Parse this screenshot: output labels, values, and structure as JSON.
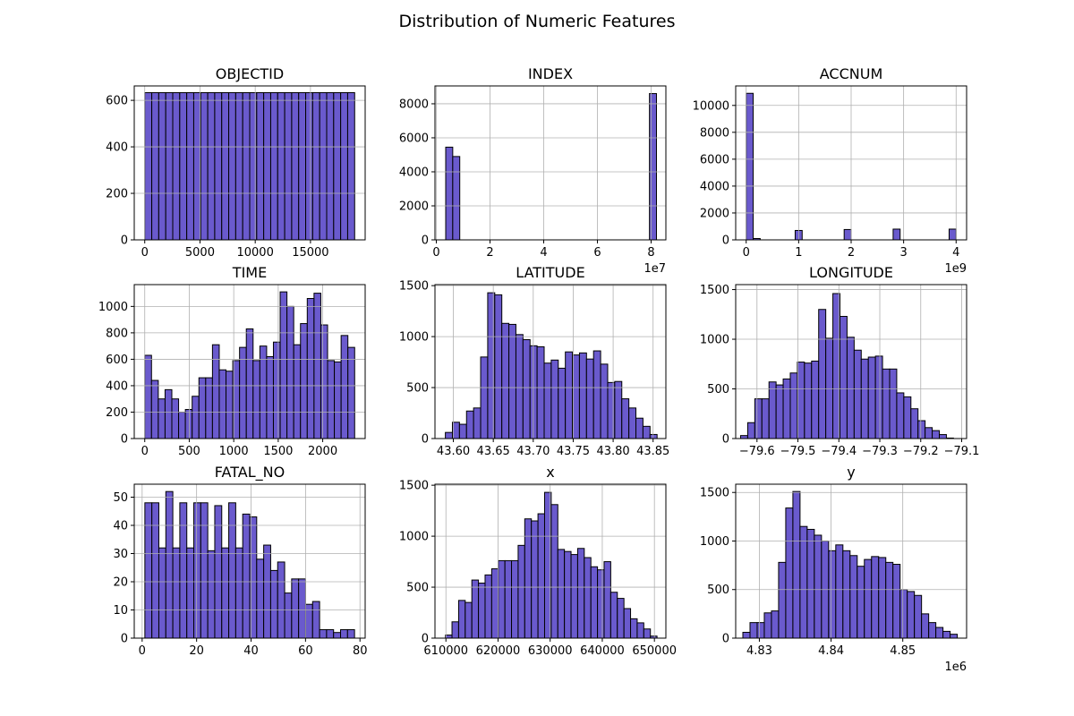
{
  "figure": {
    "suptitle": "Distribution of Numeric Features",
    "bar_color": "#6A5ACD",
    "edge_color": "#000000",
    "grid": true
  },
  "chart_data": [
    {
      "type": "bar",
      "title": "OBJECTID",
      "xlim": [
        -950,
        19950
      ],
      "ylim": [
        0,
        662
      ],
      "x_ticks": [
        {
          "v": 0,
          "label": "0"
        },
        {
          "v": 5000,
          "label": "5000"
        },
        {
          "v": 10000,
          "label": "10000"
        },
        {
          "v": 15000,
          "label": "15000"
        }
      ],
      "y_ticks": [
        {
          "v": 0,
          "label": "0"
        },
        {
          "v": 200,
          "label": "200"
        },
        {
          "v": 400,
          "label": "400"
        },
        {
          "v": 600,
          "label": "600"
        }
      ],
      "x_offset_label": "",
      "bin_start": 1,
      "bin_end": 19000,
      "values": [
        633,
        633,
        633,
        633,
        633,
        633,
        633,
        633,
        633,
        633,
        633,
        633,
        633,
        633,
        633,
        633,
        633,
        633,
        633,
        633,
        633,
        633,
        633,
        633,
        633,
        633,
        633,
        633,
        633,
        633
      ]
    },
    {
      "type": "bar",
      "title": "INDEX",
      "xlim": [
        -0.05,
        8.55
      ],
      "ylim": [
        0,
        9050
      ],
      "x_ticks": [
        {
          "v": 0,
          "label": "0"
        },
        {
          "v": 2,
          "label": "2"
        },
        {
          "v": 4,
          "label": "4"
        },
        {
          "v": 6,
          "label": "6"
        },
        {
          "v": 8,
          "label": "8"
        }
      ],
      "y_ticks": [
        {
          "v": 0,
          "label": "0"
        },
        {
          "v": 2000,
          "label": "2000"
        },
        {
          "v": 4000,
          "label": "4000"
        },
        {
          "v": 6000,
          "label": "6000"
        },
        {
          "v": 8000,
          "label": "8000"
        }
      ],
      "x_offset_label": "1e7",
      "bin_start": 0.35,
      "bin_end": 8.2,
      "values": [
        5450,
        4900,
        0,
        0,
        0,
        0,
        0,
        0,
        0,
        0,
        0,
        0,
        0,
        0,
        0,
        0,
        0,
        0,
        0,
        0,
        0,
        0,
        0,
        0,
        0,
        0,
        0,
        0,
        0,
        8600
      ]
    },
    {
      "type": "bar",
      "title": "ACCNUM",
      "xlim": [
        -0.2,
        4.2
      ],
      "ylim": [
        0,
        11450
      ],
      "x_ticks": [
        {
          "v": 0,
          "label": "0"
        },
        {
          "v": 1,
          "label": "1"
        },
        {
          "v": 2,
          "label": "2"
        },
        {
          "v": 3,
          "label": "3"
        },
        {
          "v": 4,
          "label": "4"
        }
      ],
      "y_ticks": [
        {
          "v": 0,
          "label": "0"
        },
        {
          "v": 2000,
          "label": "2000"
        },
        {
          "v": 4000,
          "label": "4000"
        },
        {
          "v": 6000,
          "label": "6000"
        },
        {
          "v": 8000,
          "label": "8000"
        },
        {
          "v": 10000,
          "label": "10000"
        }
      ],
      "x_offset_label": "1e9",
      "bin_start": 0,
      "bin_end": 4.0,
      "values": [
        10900,
        100,
        0,
        0,
        0,
        0,
        0,
        700,
        0,
        0,
        0,
        0,
        0,
        0,
        770,
        0,
        0,
        0,
        0,
        0,
        0,
        800,
        0,
        0,
        0,
        0,
        0,
        0,
        0,
        800
      ]
    },
    {
      "type": "bar",
      "title": "TIME",
      "xlim": [
        -118,
        2477
      ],
      "ylim": [
        0,
        1165
      ],
      "x_ticks": [
        {
          "v": 0,
          "label": "0"
        },
        {
          "v": 500,
          "label": "500"
        },
        {
          "v": 1000,
          "label": "1000"
        },
        {
          "v": 1500,
          "label": "1500"
        },
        {
          "v": 2000,
          "label": "2000"
        }
      ],
      "y_ticks": [
        {
          "v": 0,
          "label": "0"
        },
        {
          "v": 200,
          "label": "200"
        },
        {
          "v": 400,
          "label": "400"
        },
        {
          "v": 600,
          "label": "600"
        },
        {
          "v": 800,
          "label": "800"
        },
        {
          "v": 1000,
          "label": "1000"
        }
      ],
      "x_offset_label": "",
      "bin_start": 0,
      "bin_end": 2359,
      "values": [
        630,
        440,
        300,
        370,
        300,
        200,
        220,
        320,
        460,
        460,
        710,
        520,
        510,
        590,
        690,
        830,
        590,
        700,
        620,
        730,
        1110,
        1000,
        710,
        870,
        1060,
        1100,
        860,
        590,
        580,
        780,
        690
      ]
    },
    {
      "type": "bar",
      "title": "LATITUDE",
      "xlim": [
        43.577,
        43.866
      ],
      "ylim": [
        0,
        1510
      ],
      "x_ticks": [
        {
          "v": 43.6,
          "label": "43.60"
        },
        {
          "v": 43.65,
          "label": "43.65"
        },
        {
          "v": 43.7,
          "label": "43.70"
        },
        {
          "v": 43.75,
          "label": "43.75"
        },
        {
          "v": 43.8,
          "label": "43.80"
        },
        {
          "v": 43.85,
          "label": "43.85"
        }
      ],
      "y_ticks": [
        {
          "v": 0,
          "label": "0"
        },
        {
          "v": 500,
          "label": "500"
        },
        {
          "v": 1000,
          "label": "1000"
        },
        {
          "v": 1500,
          "label": "1500"
        }
      ],
      "x_offset_label": "",
      "bin_start": 43.59,
      "bin_end": 43.855,
      "values": [
        60,
        160,
        140,
        270,
        300,
        800,
        1430,
        1410,
        1130,
        1120,
        1020,
        970,
        910,
        900,
        740,
        770,
        690,
        850,
        820,
        840,
        780,
        860,
        730,
        550,
        560,
        390,
        300,
        200,
        120,
        40
      ]
    },
    {
      "type": "bar",
      "title": "LONGITUDE",
      "xlim": [
        -79.652,
        -79.088
      ],
      "ylim": [
        0,
        1550
      ],
      "x_ticks": [
        {
          "v": -79.6,
          "label": "−79.6"
        },
        {
          "v": -79.5,
          "label": "−79.5"
        },
        {
          "v": -79.4,
          "label": "−79.4"
        },
        {
          "v": -79.3,
          "label": "−79.3"
        },
        {
          "v": -79.2,
          "label": "−79.2"
        },
        {
          "v": -79.1,
          "label": "−79.1"
        }
      ],
      "y_ticks": [
        {
          "v": 0,
          "label": "0"
        },
        {
          "v": 500,
          "label": "500"
        },
        {
          "v": 1000,
          "label": "1000"
        },
        {
          "v": 1500,
          "label": "1500"
        }
      ],
      "x_offset_label": "",
      "bin_start": -79.64,
      "bin_end": -79.12,
      "values": [
        30,
        160,
        400,
        400,
        570,
        540,
        600,
        660,
        770,
        760,
        780,
        1300,
        1010,
        1460,
        1230,
        1020,
        890,
        800,
        820,
        830,
        700,
        700,
        460,
        420,
        300,
        180,
        110,
        80,
        40,
        5
      ]
    },
    {
      "type": "bar",
      "title": "FATAL_NO",
      "xlim": [
        -2.9,
        81.9
      ],
      "ylim": [
        0,
        54.6
      ],
      "x_ticks": [
        {
          "v": 0,
          "label": "0"
        },
        {
          "v": 20,
          "label": "20"
        },
        {
          "v": 40,
          "label": "40"
        },
        {
          "v": 60,
          "label": "60"
        },
        {
          "v": 80,
          "label": "80"
        }
      ],
      "y_ticks": [
        {
          "v": 0,
          "label": "0"
        },
        {
          "v": 10,
          "label": "10"
        },
        {
          "v": 20,
          "label": "20"
        },
        {
          "v": 30,
          "label": "30"
        },
        {
          "v": 40,
          "label": "40"
        },
        {
          "v": 50,
          "label": "50"
        }
      ],
      "x_offset_label": "",
      "bin_start": 1,
      "bin_end": 78,
      "values": [
        48,
        48,
        32,
        52,
        32,
        48,
        32,
        48,
        48,
        31,
        47,
        32,
        48,
        32,
        44,
        43,
        28,
        33,
        24,
        27,
        16,
        21,
        21,
        12,
        13,
        3,
        3,
        2,
        3,
        3
      ]
    },
    {
      "type": "bar",
      "title": "x",
      "xlim": [
        607900,
        652200
      ],
      "ylim": [
        0,
        1510
      ],
      "x_ticks": [
        {
          "v": 610000,
          "label": "610000"
        },
        {
          "v": 620000,
          "label": "620000"
        },
        {
          "v": 630000,
          "label": "630000"
        },
        {
          "v": 640000,
          "label": "640000"
        },
        {
          "v": 650000,
          "label": "650000"
        }
      ],
      "y_ticks": [
        {
          "v": 0,
          "label": "0"
        },
        {
          "v": 500,
          "label": "500"
        },
        {
          "v": 1000,
          "label": "1000"
        },
        {
          "v": 1500,
          "label": "1500"
        }
      ],
      "x_offset_label": "",
      "bin_start": 609900,
      "bin_end": 650500,
      "values": [
        30,
        160,
        370,
        350,
        570,
        540,
        620,
        680,
        760,
        760,
        760,
        910,
        1170,
        1150,
        1220,
        1430,
        1310,
        870,
        850,
        820,
        880,
        790,
        700,
        670,
        750,
        450,
        390,
        290,
        190,
        150,
        90,
        20
      ]
    },
    {
      "type": "bar",
      "title": "y",
      "xlim": [
        4.8267,
        4.8589
      ],
      "ylim": [
        0,
        1585
      ],
      "x_ticks": [
        {
          "v": 4.83,
          "label": "4.83"
        },
        {
          "v": 4.84,
          "label": "4.84"
        },
        {
          "v": 4.85,
          "label": "4.85"
        }
      ],
      "y_ticks": [
        {
          "v": 0,
          "label": "0"
        },
        {
          "v": 500,
          "label": "500"
        },
        {
          "v": 1000,
          "label": "1000"
        },
        {
          "v": 1500,
          "label": "1500"
        }
      ],
      "x_offset_label": "1e6",
      "bin_start": 4.8277,
      "bin_end": 4.8576,
      "values": [
        60,
        160,
        160,
        260,
        280,
        780,
        1340,
        1510,
        1150,
        1120,
        1060,
        1000,
        900,
        960,
        900,
        850,
        740,
        810,
        840,
        830,
        780,
        760,
        500,
        480,
        440,
        250,
        160,
        110,
        70,
        40
      ]
    }
  ]
}
